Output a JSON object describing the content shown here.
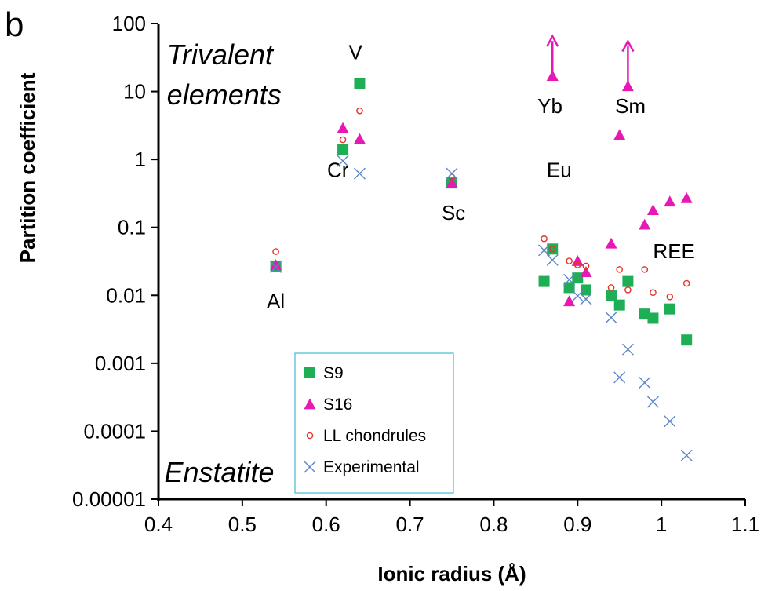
{
  "panel_label": "b",
  "chart_data": {
    "type": "scatter",
    "title": "",
    "xlabel": "Ionic radius (Å)",
    "ylabel": "Partition coefficient",
    "xlim": [
      0.4,
      1.1
    ],
    "ylim": [
      1e-05,
      100
    ],
    "yscale": "log",
    "x_ticks": [
      "0.4",
      "0.5",
      "0.6",
      "0.7",
      "0.8",
      "0.9",
      "1",
      "1.1"
    ],
    "y_ticks": [
      "100",
      "10",
      "1",
      "0.1",
      "0.01",
      "0.001",
      "0.0001",
      "0.00001"
    ],
    "grid": false,
    "legend_position": "bottom-left inside",
    "series": [
      {
        "name": "S9",
        "marker": "square",
        "color": "#1EAE55",
        "points": [
          [
            0.54,
            0.027
          ],
          [
            0.62,
            1.4
          ],
          [
            0.64,
            13
          ],
          [
            0.75,
            0.45
          ],
          [
            0.86,
            0.016
          ],
          [
            0.87,
            0.048
          ],
          [
            0.89,
            0.013
          ],
          [
            0.9,
            0.018
          ],
          [
            0.91,
            0.012
          ],
          [
            0.94,
            0.0098
          ],
          [
            0.95,
            0.0072
          ],
          [
            0.96,
            0.016
          ],
          [
            0.98,
            0.0053
          ],
          [
            0.99,
            0.0046
          ],
          [
            1.01,
            0.0063
          ],
          [
            1.03,
            0.0022
          ]
        ]
      },
      {
        "name": "S16",
        "marker": "triangle",
        "color": "#E619B4",
        "points": [
          [
            0.54,
            0.028
          ],
          [
            0.62,
            2.9
          ],
          [
            0.64,
            2.0
          ],
          [
            0.75,
            0.45
          ],
          [
            0.87,
            17
          ],
          [
            0.89,
            0.0082
          ],
          [
            0.9,
            0.032
          ],
          [
            0.91,
            0.022
          ],
          [
            0.94,
            0.058
          ],
          [
            0.95,
            2.3
          ],
          [
            0.96,
            12
          ],
          [
            0.98,
            0.11
          ],
          [
            0.99,
            0.18
          ],
          [
            1.01,
            0.24
          ],
          [
            1.03,
            0.27
          ]
        ]
      },
      {
        "name": "LL chondrules",
        "marker": "circle",
        "color": "#E8322A",
        "points": [
          [
            0.54,
            0.044
          ],
          [
            0.62,
            1.95
          ],
          [
            0.64,
            5.2
          ],
          [
            0.75,
            0.55
          ],
          [
            0.86,
            0.068
          ],
          [
            0.87,
            0.048
          ],
          [
            0.89,
            0.032
          ],
          [
            0.9,
            0.028
          ],
          [
            0.91,
            0.027
          ],
          [
            0.94,
            0.013
          ],
          [
            0.95,
            0.024
          ],
          [
            0.96,
            0.012
          ],
          [
            0.98,
            0.024
          ],
          [
            0.99,
            0.011
          ],
          [
            1.01,
            0.0095
          ],
          [
            1.03,
            0.015
          ]
        ]
      },
      {
        "name": "Experimental",
        "marker": "x",
        "color": "#5B86C6",
        "points": [
          [
            0.54,
            0.026
          ],
          [
            0.62,
            0.95
          ],
          [
            0.64,
            0.62
          ],
          [
            0.75,
            0.62
          ],
          [
            0.86,
            0.046
          ],
          [
            0.87,
            0.033
          ],
          [
            0.89,
            0.017
          ],
          [
            0.9,
            0.0098
          ],
          [
            0.91,
            0.0088
          ],
          [
            0.94,
            0.0047
          ],
          [
            0.95,
            0.00062
          ],
          [
            0.96,
            0.0016
          ],
          [
            0.98,
            0.00052
          ],
          [
            0.99,
            0.00027
          ],
          [
            1.01,
            0.00014
          ],
          [
            1.03,
            4.4e-05
          ]
        ]
      }
    ],
    "arrows": [
      {
        "x": 0.87,
        "from": 17,
        "to": 65,
        "color": "#E619B4"
      },
      {
        "x": 0.96,
        "from": 12,
        "to": 55,
        "color": "#E619B4"
      }
    ],
    "annotations": [
      {
        "text": "V",
        "x": 0.635,
        "y": 30,
        "anchor": "middle",
        "style": "normal"
      },
      {
        "text": "Cr",
        "x": 0.614,
        "y": 0.55,
        "anchor": "middle",
        "style": "normal"
      },
      {
        "text": "Sc",
        "x": 0.752,
        "y": 0.13,
        "anchor": "middle",
        "style": "normal"
      },
      {
        "text": "Al",
        "x": 0.54,
        "y": 0.0065,
        "anchor": "middle",
        "style": "normal"
      },
      {
        "text": "Yb",
        "x": 0.867,
        "y": 4.8,
        "anchor": "middle",
        "style": "normal"
      },
      {
        "text": "Sm",
        "x": 0.963,
        "y": 4.8,
        "anchor": "middle",
        "style": "normal"
      },
      {
        "text": "Eu",
        "x": 0.878,
        "y": 0.55,
        "anchor": "middle",
        "style": "normal"
      },
      {
        "text": "REE",
        "x": 1.015,
        "y": 0.035,
        "anchor": "middle",
        "style": "normal"
      },
      {
        "text": "Trivalent",
        "x": 0.41,
        "y": 25,
        "anchor": "start",
        "style": "italic"
      },
      {
        "text": "elements",
        "x": 0.41,
        "y": 6.5,
        "anchor": "start",
        "style": "italic"
      },
      {
        "text": "Enstatite",
        "x": 0.407,
        "y": 1.8e-05,
        "anchor": "start",
        "style": "italic"
      }
    ]
  }
}
